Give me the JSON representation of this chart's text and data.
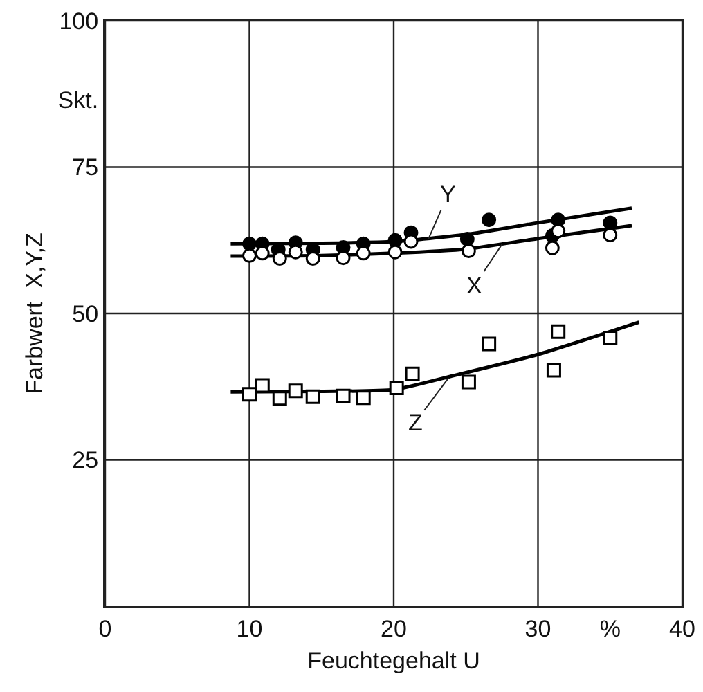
{
  "chart_data": {
    "type": "scatter",
    "xlabel": "Feuchtegehalt U",
    "ylabel": "Farbwert  X,Y,Z",
    "xlim": [
      0,
      40
    ],
    "xticks": [
      0,
      10,
      20,
      30,
      {
        "value": 35,
        "label": "%"
      },
      40
    ],
    "ylim": [
      0,
      100
    ],
    "yticks": [
      25,
      50,
      75,
      {
        "value": 86.5,
        "label": "Skt."
      },
      100
    ],
    "grid": true,
    "series": [
      {
        "marker": "circle",
        "color": "#000000",
        "x": [
          10,
          10.9,
          12.0,
          13.2,
          14.4,
          16.5,
          17.9,
          20.1,
          21.2,
          25.1,
          26.6,
          31.0,
          31.4,
          35.0
        ],
        "values": [
          61.9,
          61.9,
          60.9,
          62.1,
          60.9,
          61.3,
          61.9,
          62.5,
          63.8,
          62.7,
          66.0,
          63.3,
          66.0,
          65.5
        ]
      },
      {
        "marker": "circle",
        "color": "#ffffff",
        "x": [
          10,
          10.9,
          12.1,
          13.2,
          14.4,
          16.5,
          17.9,
          20.1,
          21.2,
          25.2,
          31.0,
          31.4,
          35.0
        ],
        "values": [
          59.9,
          60.3,
          59.4,
          60.5,
          59.4,
          59.5,
          60.3,
          60.5,
          62.3,
          60.7,
          61.2,
          64.1,
          63.4
        ]
      },
      {
        "marker": "square",
        "color": "#ffffff",
        "x": [
          10,
          10.9,
          12.1,
          13.2,
          14.4,
          16.5,
          17.9,
          20.2,
          21.3,
          25.2,
          26.6,
          31.1,
          31.4,
          35.0
        ],
        "values": [
          36.2,
          37.7,
          35.5,
          36.8,
          35.8,
          35.9,
          35.6,
          37.3,
          39.7,
          38.3,
          44.8,
          40.3,
          46.9,
          45.8
        ]
      },
      {
        "type": "line",
        "line_style": "solid",
        "color": "#000000",
        "x": [
          8.7,
          15,
          20,
          25,
          30,
          36.5
        ],
        "values": [
          61.9,
          62.0,
          62.3,
          63.5,
          65.5,
          68.0
        ]
      },
      {
        "type": "line",
        "line_style": "solid",
        "color": "#000000",
        "x": [
          8.7,
          15,
          20,
          25,
          30,
          36.5
        ],
        "values": [
          59.8,
          59.9,
          60.3,
          61.0,
          62.8,
          65.0
        ]
      },
      {
        "type": "line",
        "line_style": "solid",
        "color": "#000000",
        "x": [
          8.7,
          15,
          20,
          24,
          30,
          37
        ],
        "values": [
          36.6,
          36.7,
          37.0,
          39.3,
          43.0,
          48.5
        ]
      }
    ],
    "annotations": [
      {
        "text": "Y",
        "x": 22.4,
        "y": 62.7
      },
      {
        "text": "X",
        "x": 27.5,
        "y": 61.8
      },
      {
        "text": "Z",
        "x": 23.8,
        "y": 39.0
      }
    ]
  }
}
